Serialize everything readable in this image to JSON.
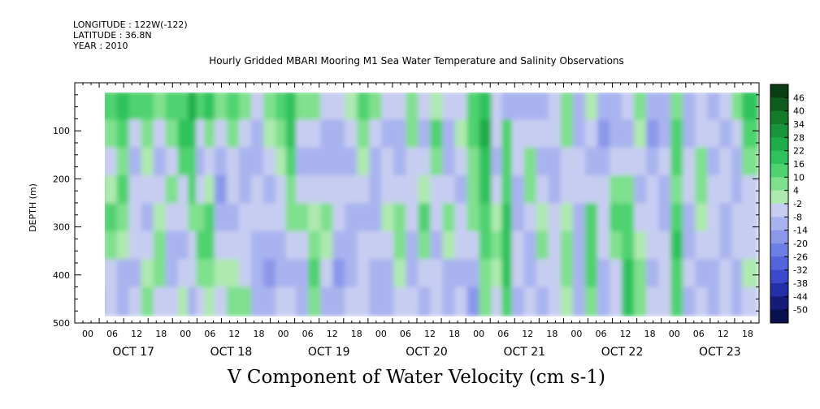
{
  "header": {
    "longitude": "LONGITUDE : 122W(-122)",
    "latitude": "LATITUDE : 36.8N",
    "year": "YEAR : 2010"
  },
  "chart_data": {
    "type": "heatmap",
    "title": "Hourly Gridded MBARI Mooring M1 Sea Water Temperature and Salinity Observations",
    "xlabel": "V Component of Water Velocity (cm s-1)",
    "ylabel": "DEPTH (m)",
    "y_axis": {
      "range": [
        500,
        0
      ],
      "data_range": [
        20,
        485
      ],
      "ticks": [
        100,
        200,
        300,
        400,
        500
      ]
    },
    "x_axis": {
      "hour_ticks": [
        "00",
        "06",
        "12",
        "18",
        "00",
        "06",
        "12",
        "18",
        "00",
        "06",
        "12",
        "18",
        "00",
        "06",
        "12",
        "18",
        "00",
        "06",
        "12",
        "18",
        "00",
        "06",
        "12",
        "18",
        "00",
        "06",
        "12",
        "18"
      ],
      "day_labels": [
        "OCT 17",
        "OCT 18",
        "OCT 19",
        "OCT 20",
        "OCT 21",
        "OCT 22",
        "OCT 23"
      ],
      "range_hours": [
        0,
        168
      ]
    },
    "colorbar": {
      "levels": [
        46,
        40,
        34,
        28,
        22,
        16,
        10,
        4,
        -2,
        -8,
        -14,
        -20,
        -26,
        -32,
        -38,
        -44,
        -50
      ],
      "colors": [
        "#0a3d14",
        "#0f5c1e",
        "#137a28",
        "#18943a",
        "#1fad4a",
        "#2fc25c",
        "#4fd270",
        "#7fe08e",
        "#aee9b0",
        "#c7cdf1",
        "#a9b3ef",
        "#8b98ea",
        "#6d7ee4",
        "#5464dc",
        "#3b49cc",
        "#2530a8",
        "#141b78",
        "#08104e"
      ]
    },
    "columns": [
      {
        "t": 3.3,
        "v": [
          12,
          14,
          10,
          8,
          10,
          6,
          5,
          4
        ]
      },
      {
        "t": 6,
        "v": [
          10,
          2,
          -4,
          4,
          8,
          -2,
          -6,
          -10
        ]
      },
      {
        "t": 9,
        "v": [
          14,
          6,
          -6,
          2,
          10,
          4,
          -4,
          -8
        ]
      },
      {
        "t": 12,
        "v": [
          16,
          12,
          4,
          10,
          6,
          -2,
          -10,
          -12
        ]
      },
      {
        "t": 15,
        "v": [
          10,
          -4,
          -10,
          -6,
          -4,
          -8,
          -12,
          -6
        ]
      },
      {
        "t": 18,
        "v": [
          12,
          8,
          2,
          -6,
          -10,
          -4,
          2,
          6
        ]
      },
      {
        "t": 21,
        "v": [
          8,
          -6,
          -10,
          -4,
          2,
          8,
          4,
          -6
        ]
      },
      {
        "t": 24,
        "v": [
          12,
          4,
          -6,
          4,
          -4,
          -12,
          -10,
          -4
        ]
      },
      {
        "t": 27,
        "v": [
          14,
          18,
          12,
          -4,
          -8,
          -10,
          -6,
          2
        ]
      },
      {
        "t": 29,
        "v": [
          24,
          20,
          14,
          10,
          8,
          -4,
          -8,
          -10
        ]
      },
      {
        "t": 31,
        "v": [
          10,
          -8,
          -14,
          -6,
          4,
          10,
          6,
          -4
        ]
      },
      {
        "t": 33,
        "v": [
          16,
          6,
          -8,
          2,
          12,
          14,
          8,
          -2
        ]
      },
      {
        "t": 36,
        "v": [
          8,
          -4,
          -12,
          -16,
          -10,
          -6,
          -2,
          -6
        ]
      },
      {
        "t": 39,
        "v": [
          12,
          6,
          -6,
          -4,
          -10,
          -4,
          2,
          6
        ]
      },
      {
        "t": 42,
        "v": [
          8,
          -4,
          -12,
          -14,
          -8,
          -6,
          -4,
          4
        ]
      },
      {
        "t": 45,
        "v": [
          -4,
          -10,
          -14,
          -6,
          -4,
          -10,
          -14,
          -12
        ]
      },
      {
        "t": 48,
        "v": [
          6,
          -2,
          -8,
          -10,
          -8,
          -12,
          -16,
          -12
        ]
      },
      {
        "t": 51,
        "v": [
          14,
          8,
          2,
          -4,
          -8,
          -10,
          -12,
          -8
        ]
      },
      {
        "t": 53,
        "v": [
          20,
          16,
          12,
          8,
          4,
          -4,
          -10,
          -6
        ]
      },
      {
        "t": 56,
        "v": [
          8,
          -6,
          -10,
          -4,
          6,
          -6,
          -14,
          -12
        ]
      },
      {
        "t": 59,
        "v": [
          4,
          -6,
          -12,
          -8,
          -2,
          8,
          12,
          6
        ]
      },
      {
        "t": 62,
        "v": [
          -4,
          -10,
          -12,
          -4,
          6,
          2,
          -8,
          -12
        ]
      },
      {
        "t": 65,
        "v": [
          -6,
          -12,
          -14,
          -8,
          -4,
          -10,
          -16,
          -12
        ]
      },
      {
        "t": 68,
        "v": [
          -2,
          -8,
          -10,
          -6,
          -10,
          -14,
          -10,
          -6
        ]
      },
      {
        "t": 71,
        "v": [
          14,
          8,
          -2,
          -8,
          -12,
          -6,
          -4,
          -8
        ]
      },
      {
        "t": 74,
        "v": [
          6,
          -4,
          -10,
          -14,
          -10,
          -6,
          -12,
          -14
        ]
      },
      {
        "t": 77,
        "v": [
          -6,
          -12,
          -8,
          -4,
          -2,
          -8,
          -14,
          -10
        ]
      },
      {
        "t": 80,
        "v": [
          -8,
          -12,
          -10,
          -6,
          4,
          8,
          2,
          -6
        ]
      },
      {
        "t": 83,
        "v": [
          8,
          4,
          -4,
          -8,
          -4,
          -10,
          -12,
          -8
        ]
      },
      {
        "t": 86,
        "v": [
          -6,
          -10,
          -8,
          2,
          10,
          6,
          -4,
          -10
        ]
      },
      {
        "t": 89,
        "v": [
          2,
          10,
          4,
          -4,
          -8,
          -10,
          -6,
          -4
        ]
      },
      {
        "t": 92,
        "v": [
          -8,
          -12,
          -14,
          -6,
          4,
          -2,
          -10,
          -12
        ]
      },
      {
        "t": 95,
        "v": [
          -6,
          2,
          -8,
          -12,
          -8,
          -4,
          -10,
          -8
        ]
      },
      {
        "t": 98,
        "v": [
          10,
          14,
          6,
          8,
          4,
          -6,
          -14,
          -16
        ]
      },
      {
        "t": 101,
        "v": [
          20,
          24,
          18,
          16,
          12,
          10,
          8,
          6
        ]
      },
      {
        "t": 104,
        "v": [
          -8,
          -6,
          -10,
          -4,
          2,
          6,
          2,
          -8
        ]
      },
      {
        "t": 106,
        "v": [
          -10,
          10,
          14,
          12,
          18,
          20,
          16,
          10
        ]
      },
      {
        "t": 109,
        "v": [
          -12,
          -8,
          -4,
          -10,
          -12,
          -8,
          -6,
          -10
        ]
      },
      {
        "t": 112,
        "v": [
          -10,
          -6,
          8,
          6,
          -4,
          -10,
          -12,
          -8
        ]
      },
      {
        "t": 115,
        "v": [
          -14,
          -8,
          -10,
          -4,
          2,
          4,
          -6,
          -10
        ]
      },
      {
        "t": 118,
        "v": [
          -8,
          -4,
          -10,
          -14,
          -8,
          -4,
          -8,
          -6
        ]
      },
      {
        "t": 121,
        "v": [
          4,
          8,
          -4,
          -8,
          -2,
          6,
          4,
          -2
        ]
      },
      {
        "t": 124,
        "v": [
          -10,
          -14,
          -8,
          -4,
          -10,
          -12,
          -14,
          -10
        ]
      },
      {
        "t": 127,
        "v": [
          2,
          -6,
          -10,
          -6,
          10,
          14,
          12,
          6
        ]
      },
      {
        "t": 130,
        "v": [
          -12,
          -20,
          -14,
          -8,
          -4,
          -8,
          -12,
          -10
        ]
      },
      {
        "t": 133,
        "v": [
          -10,
          -12,
          -6,
          8,
          10,
          4,
          -6,
          -8
        ]
      },
      {
        "t": 136,
        "v": [
          -6,
          -10,
          -4,
          8,
          12,
          14,
          16,
          18
        ]
      },
      {
        "t": 139,
        "v": [
          6,
          2,
          -6,
          -10,
          -8,
          -2,
          4,
          8
        ]
      },
      {
        "t": 142,
        "v": [
          -12,
          -16,
          -12,
          -6,
          -4,
          -8,
          -10,
          -6
        ]
      },
      {
        "t": 145,
        "v": [
          -14,
          -10,
          -8,
          -12,
          -10,
          -4,
          -6,
          -8
        ]
      },
      {
        "t": 148,
        "v": [
          4,
          10,
          12,
          8,
          12,
          16,
          14,
          10
        ]
      },
      {
        "t": 151,
        "v": [
          -10,
          -12,
          -8,
          -6,
          -10,
          -12,
          -8,
          -10
        ]
      },
      {
        "t": 154,
        "v": [
          -8,
          -4,
          4,
          8,
          2,
          -6,
          -10,
          -8
        ]
      },
      {
        "t": 157,
        "v": [
          -12,
          -8,
          -10,
          -6,
          -4,
          -8,
          -12,
          -10
        ]
      },
      {
        "t": 160,
        "v": [
          -6,
          -10,
          -4,
          -8,
          -12,
          -10,
          -6,
          -4
        ]
      },
      {
        "t": 163,
        "v": [
          4,
          -6,
          -10,
          -12,
          -8,
          -4,
          -10,
          -12
        ]
      },
      {
        "t": 165,
        "v": [
          18,
          12,
          4,
          -4,
          -8,
          -6,
          -2,
          -6
        ]
      }
    ]
  }
}
